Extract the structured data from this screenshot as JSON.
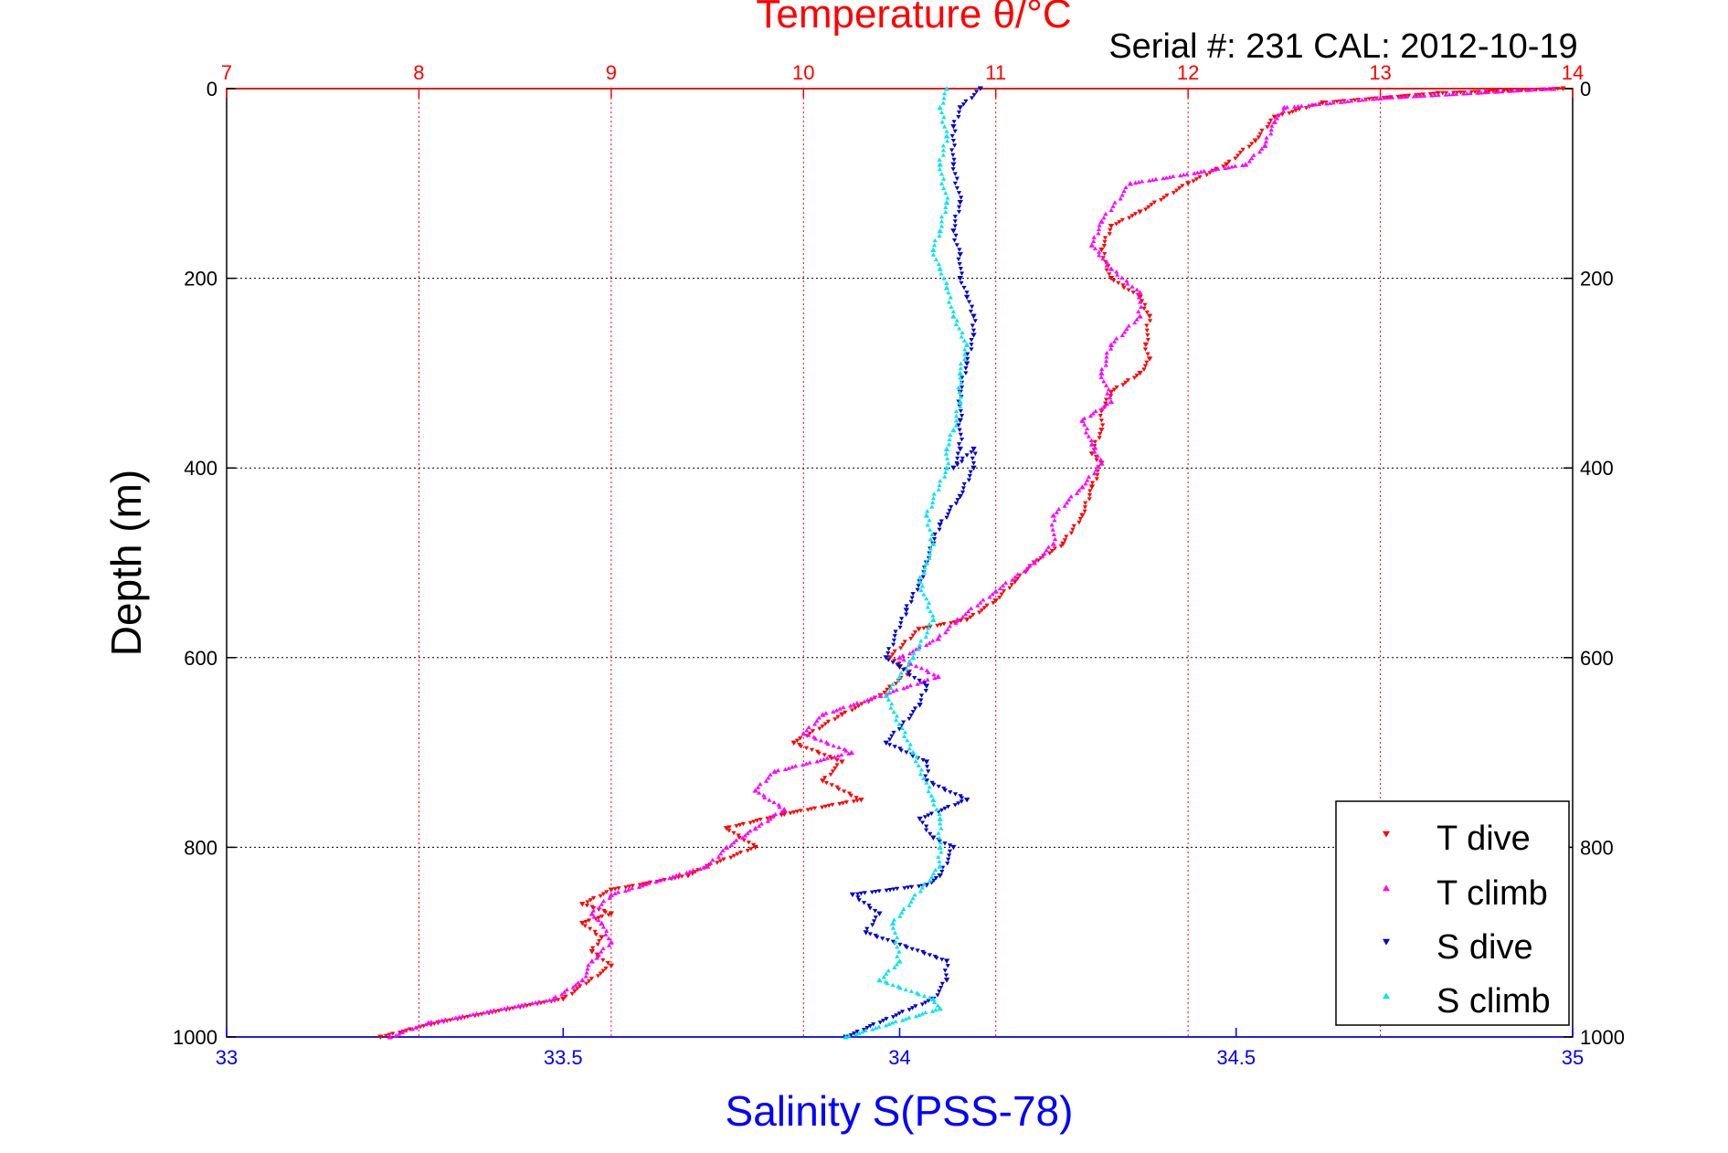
{
  "chart_data": {
    "type": "scatter",
    "title": "Temperature θ/°C",
    "subtitle": "Serial #: 231  CAL: 2012-10-19",
    "ylabel": "Depth (m)",
    "xlabel": "Salinity S(PSS-78)",
    "xlabel_top": "Temperature θ/°C",
    "ylim": [
      0,
      1000
    ],
    "y_reversed": true,
    "xlim_bottom": [
      33,
      35
    ],
    "xlim_top": [
      7,
      14
    ],
    "yticks": [
      "0",
      "200",
      "400",
      "600",
      "800",
      "1000"
    ],
    "xticks_bottom": [
      "33",
      "33.5",
      "34",
      "34.5",
      "35"
    ],
    "xticks_top": [
      "7",
      "8",
      "9",
      "10",
      "11",
      "12",
      "13",
      "14"
    ],
    "grid": true,
    "legend_position": "bottom-right",
    "colors": {
      "temperature_axis": "#ff0000",
      "salinity_axis": "#0000ff",
      "T_dive": "#ff0000",
      "T_climb": "#ff00ff",
      "S_dive": "#0000cc",
      "S_climb": "#00e5ee"
    },
    "series": [
      {
        "name": "T dive",
        "axis": "temperature",
        "marker": "down-triangle",
        "x": [
          13.95,
          13.3,
          12.7,
          12.45,
          12.35,
          12.2,
          12.0,
          11.75,
          11.6,
          11.55,
          11.6,
          11.75,
          11.8,
          11.78,
          11.8,
          11.75,
          11.6,
          11.55,
          11.55,
          11.5,
          11.55,
          11.5,
          11.45,
          11.35,
          11.2,
          11.1,
          11.0,
          10.85,
          10.6,
          10.45,
          10.55,
          10.4,
          10.2,
          9.95,
          10.2,
          10.1,
          10.3,
          9.9,
          9.6,
          9.75,
          9.5,
          9.4,
          9.0,
          8.85,
          9.0,
          8.85,
          8.95,
          8.9,
          9.0,
          8.75,
          8.1,
          7.8
        ],
        "y": [
          0,
          5,
          15,
          30,
          55,
          80,
          100,
          130,
          145,
          170,
          200,
          220,
          240,
          270,
          285,
          300,
          320,
          340,
          360,
          385,
          395,
          420,
          450,
          480,
          500,
          520,
          540,
          560,
          570,
          600,
          615,
          640,
          660,
          690,
          710,
          730,
          750,
          765,
          780,
          800,
          820,
          830,
          845,
          860,
          870,
          880,
          895,
          910,
          925,
          960,
          985,
          1000
        ]
      },
      {
        "name": "T climb",
        "axis": "temperature",
        "marker": "up-triangle",
        "x": [
          13.9,
          13.0,
          12.5,
          12.45,
          12.4,
          12.3,
          11.7,
          11.55,
          11.5,
          11.6,
          11.75,
          11.75,
          11.6,
          11.55,
          11.6,
          11.45,
          11.5,
          11.55,
          11.45,
          11.3,
          11.3,
          11.2,
          11.0,
          10.8,
          10.7,
          10.5,
          10.7,
          10.4,
          10.1,
          10.0,
          10.25,
          9.85,
          9.75,
          9.9,
          9.75,
          9.6,
          9.5,
          9.0,
          8.9,
          8.95,
          9.0,
          8.9,
          8.85,
          8.7,
          8.05,
          7.85
        ],
        "y": [
          0,
          10,
          20,
          35,
          60,
          80,
          100,
          140,
          165,
          190,
          215,
          240,
          270,
          300,
          330,
          350,
          375,
          395,
          420,
          450,
          480,
          500,
          530,
          560,
          580,
          600,
          620,
          640,
          660,
          680,
          700,
          720,
          740,
          760,
          780,
          800,
          820,
          850,
          870,
          880,
          900,
          920,
          940,
          960,
          985,
          1000
        ]
      },
      {
        "name": "S dive",
        "axis": "salinity",
        "marker": "down-triangle",
        "x": [
          34.12,
          34.09,
          34.08,
          34.08,
          34.09,
          34.08,
          34.09,
          34.09,
          34.1,
          34.11,
          34.11,
          34.1,
          34.09,
          34.09,
          34.09,
          34.08,
          34.11,
          34.11,
          34.09,
          34.06,
          34.05,
          34.04,
          34.03,
          34.01,
          33.98,
          34.0,
          34.04,
          34.03,
          33.98,
          34.04,
          34.04,
          34.1,
          34.03,
          34.05,
          34.08,
          34.06,
          34.04,
          33.93,
          33.97,
          33.95,
          34.07,
          34.07,
          34.05,
          33.92
        ],
        "y": [
          0,
          20,
          40,
          80,
          120,
          150,
          175,
          200,
          220,
          240,
          260,
          290,
          320,
          350,
          380,
          400,
          380,
          400,
          430,
          460,
          480,
          500,
          520,
          550,
          600,
          610,
          630,
          650,
          690,
          710,
          730,
          750,
          770,
          790,
          800,
          830,
          840,
          850,
          870,
          890,
          920,
          940,
          960,
          1000
        ]
      },
      {
        "name": "S climb",
        "axis": "salinity",
        "marker": "up-triangle",
        "x": [
          34.07,
          34.06,
          34.07,
          34.06,
          34.07,
          34.06,
          34.05,
          34.06,
          34.07,
          34.08,
          34.1,
          34.09,
          34.09,
          34.08,
          34.07,
          34.07,
          34.04,
          34.05,
          34.04,
          34.03,
          34.05,
          34.02,
          33.98,
          34.02,
          34.05,
          34.06,
          34.06,
          34.06,
          33.99,
          34.0,
          33.97,
          34.05,
          34.06,
          33.92
        ],
        "y": [
          0,
          20,
          50,
          80,
          120,
          150,
          170,
          190,
          210,
          240,
          270,
          300,
          330,
          360,
          380,
          400,
          450,
          480,
          500,
          520,
          560,
          600,
          640,
          700,
          750,
          770,
          800,
          820,
          880,
          920,
          940,
          960,
          970,
          1000
        ]
      }
    ]
  }
}
